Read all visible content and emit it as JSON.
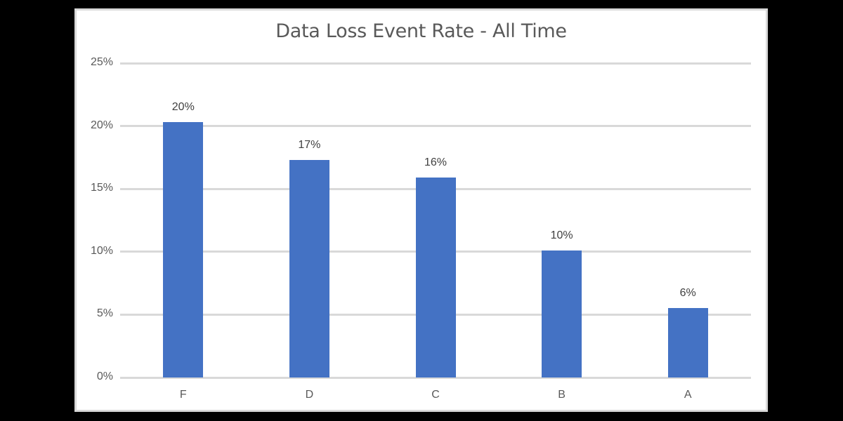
{
  "chart_data": {
    "type": "bar",
    "title": "Data Loss Event Rate -  All Time",
    "categories": [
      "F",
      "D",
      "C",
      "B",
      "A"
    ],
    "values": [
      20.3,
      17.3,
      15.9,
      10.1,
      5.5
    ],
    "data_labels": [
      "20%",
      "17%",
      "16%",
      "10%",
      "6%"
    ],
    "xlabel": "",
    "ylabel": "",
    "ylim": [
      0,
      25
    ],
    "yticks": [
      0,
      5,
      10,
      15,
      20,
      25
    ],
    "ytick_labels": [
      "0%",
      "5%",
      "10%",
      "15%",
      "20%",
      "25%"
    ],
    "grid": true,
    "legend": null,
    "bar_color": "#4472C4"
  },
  "colors": {
    "background": "#000000",
    "panel": "#ffffff",
    "panel_border": "#d9d9d9",
    "gridline": "#d9d9d9",
    "text": "#595959",
    "bar": "#4472C4"
  }
}
